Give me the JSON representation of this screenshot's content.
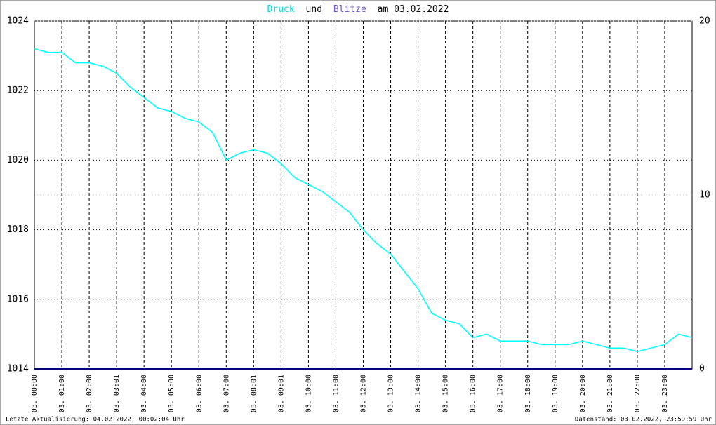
{
  "chart_data": {
    "type": "line",
    "title_joiner": "und",
    "title_date": "am 03.02.2022",
    "footer_left": "Letzte Aktualisierung: 04.02.2022, 00:02:04 Uhr",
    "footer_right": "Datenstand: 03.02.2022, 23:59:59 Uhr",
    "xlim": [
      0,
      24
    ],
    "xticks": [
      {
        "value": 0,
        "label": "03. 00:00"
      },
      {
        "value": 1,
        "label": "03. 01:00"
      },
      {
        "value": 2,
        "label": "03. 02:00"
      },
      {
        "value": 3,
        "label": "03. 03:01"
      },
      {
        "value": 4,
        "label": "03. 04:00"
      },
      {
        "value": 5,
        "label": "03. 05:00"
      },
      {
        "value": 6,
        "label": "03. 06:00"
      },
      {
        "value": 7,
        "label": "03. 07:00"
      },
      {
        "value": 8,
        "label": "03. 08:01"
      },
      {
        "value": 9,
        "label": "03. 09:01"
      },
      {
        "value": 10,
        "label": "03. 10:00"
      },
      {
        "value": 11,
        "label": "03. 11:00"
      },
      {
        "value": 12,
        "label": "03. 12:00"
      },
      {
        "value": 13,
        "label": "03. 13:00"
      },
      {
        "value": 14,
        "label": "03. 14:00"
      },
      {
        "value": 15,
        "label": "03. 15:00"
      },
      {
        "value": 16,
        "label": "03. 16:00"
      },
      {
        "value": 17,
        "label": "03. 17:00"
      },
      {
        "value": 18,
        "label": "03. 18:00"
      },
      {
        "value": 19,
        "label": "03. 19:00"
      },
      {
        "value": 20,
        "label": "03. 20:00"
      },
      {
        "value": 21,
        "label": "03. 21:00"
      },
      {
        "value": 22,
        "label": "03. 22:00"
      },
      {
        "value": 23,
        "label": "03. 23:00"
      }
    ],
    "ylim": [
      1014,
      1024
    ],
    "yticks": [
      1014,
      1016,
      1018,
      1020,
      1022,
      1024
    ],
    "y2lim": [
      0,
      20
    ],
    "y2ticks": [
      0,
      10,
      20
    ],
    "grid": true,
    "series": [
      {
        "name": "Druck",
        "color": "#00ffff",
        "x": [
          0,
          0.5,
          1,
          1.5,
          2,
          2.5,
          3,
          3.5,
          4,
          4.5,
          5,
          5.5,
          6,
          6.5,
          7,
          7.5,
          8,
          8.5,
          9,
          9.5,
          10,
          10.5,
          11,
          11.5,
          12,
          12.5,
          13,
          13.5,
          14,
          14.5,
          15,
          15.5,
          16,
          16.5,
          17,
          17.5,
          18,
          18.5,
          19,
          19.5,
          20,
          20.5,
          21,
          21.5,
          22,
          22.5,
          23,
          23.5,
          24
        ],
        "values": [
          1023.2,
          1023.1,
          1023.1,
          1022.8,
          1022.8,
          1022.7,
          1022.5,
          1022.1,
          1021.8,
          1021.5,
          1021.4,
          1021.2,
          1021.1,
          1020.8,
          1020.0,
          1020.2,
          1020.3,
          1020.2,
          1019.9,
          1019.5,
          1019.3,
          1019.1,
          1018.8,
          1018.5,
          1018.0,
          1017.6,
          1017.3,
          1016.8,
          1016.3,
          1015.6,
          1015.4,
          1015.3,
          1014.9,
          1015.0,
          1014.8,
          1014.8,
          1014.8,
          1014.7,
          1014.7,
          1014.7,
          1014.8,
          1014.7,
          1014.6,
          1014.6,
          1014.5,
          1014.6,
          1014.7,
          1015.0,
          1014.9
        ]
      },
      {
        "name": "Blitze",
        "color": "#6a5acd",
        "line_color": "#000080",
        "axis": "y2",
        "x": [
          0,
          24
        ],
        "values": [
          0,
          0
        ]
      }
    ]
  }
}
